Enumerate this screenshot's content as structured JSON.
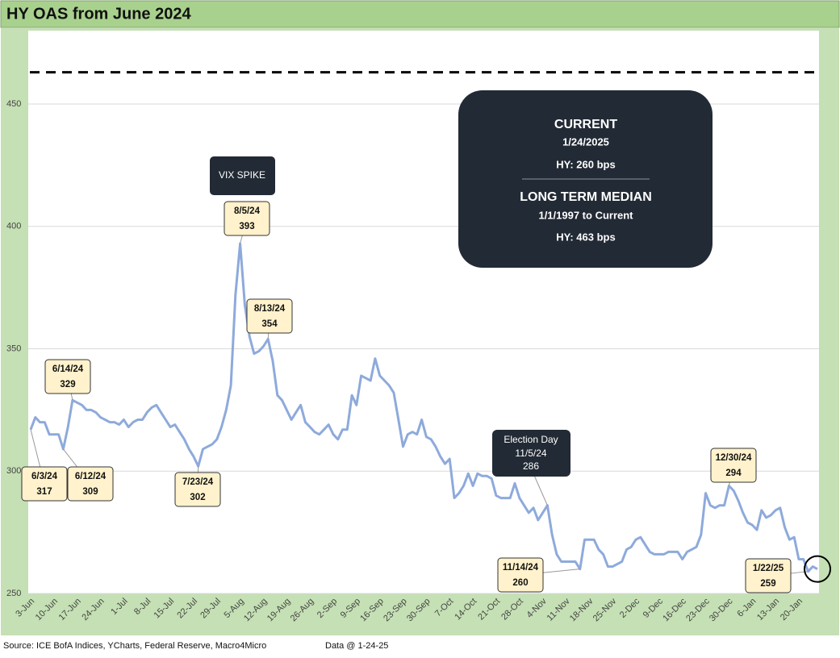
{
  "chart_data": {
    "type": "line",
    "title": "HY OAS from June 2024",
    "categories": [
      "3-Jun",
      null,
      null,
      null,
      null,
      "10-Jun",
      null,
      null,
      null,
      null,
      "17-Jun",
      null,
      null,
      null,
      null,
      "24-Jun",
      null,
      null,
      null,
      null,
      "1-Jul",
      null,
      null,
      null,
      null,
      "8-Jul",
      null,
      null,
      null,
      null,
      "15-Jul",
      null,
      null,
      null,
      null,
      "22-Jul",
      null,
      null,
      null,
      null,
      "29-Jul",
      null,
      null,
      null,
      null,
      "5-Aug",
      null,
      null,
      null,
      null,
      "12-Aug",
      null,
      null,
      null,
      null,
      "19-Aug",
      null,
      null,
      null,
      null,
      "26-Aug",
      null,
      null,
      null,
      null,
      "2-Sep",
      null,
      null,
      null,
      null,
      "9-Sep",
      null,
      null,
      null,
      null,
      "16-Sep",
      null,
      null,
      null,
      null,
      "23-Sep",
      null,
      null,
      null,
      null,
      "30-Sep",
      null,
      null,
      null,
      null,
      "7-Oct",
      null,
      null,
      null,
      null,
      "14-Oct",
      null,
      null,
      null,
      null,
      "21-Oct",
      null,
      null,
      null,
      null,
      "28-Oct",
      null,
      null,
      null,
      null,
      "4-Nov",
      null,
      null,
      null,
      null,
      "11-Nov",
      null,
      null,
      null,
      null,
      "18-Nov",
      null,
      null,
      null,
      null,
      "25-Nov",
      null,
      null,
      null,
      null,
      "2-Dec",
      null,
      null,
      null,
      null,
      "9-Dec",
      null,
      null,
      null,
      null,
      "16-Dec",
      null,
      null,
      null,
      null,
      "23-Dec",
      null,
      null,
      null,
      null,
      "30-Dec",
      null,
      null,
      null,
      null,
      "6-Jan",
      null,
      null,
      null,
      null,
      "13-Jan",
      null,
      null,
      null,
      null,
      "20-Jan",
      null,
      null,
      null,
      null
    ],
    "series": [
      {
        "name": "HY OAS",
        "color": "#8eaadb",
        "values": [
          317,
          322,
          320,
          320,
          315,
          315,
          315,
          309,
          318,
          329,
          328,
          327,
          325,
          325,
          324,
          322,
          321,
          320,
          320,
          319,
          321,
          318,
          320,
          321,
          321,
          324,
          326,
          327,
          324,
          321,
          318,
          319,
          316,
          313,
          309,
          306,
          302,
          309,
          310,
          311,
          313,
          318,
          325,
          335,
          372,
          393,
          368,
          355,
          348,
          349,
          351,
          354,
          345,
          331,
          329,
          325,
          321,
          324,
          327,
          320,
          318,
          316,
          315,
          317,
          319,
          315,
          313,
          317,
          317,
          331,
          327,
          339,
          338,
          337,
          346,
          339,
          337,
          335,
          332,
          321,
          310,
          315,
          316,
          315,
          321,
          314,
          313,
          310,
          306,
          303,
          305,
          289,
          291,
          294,
          299,
          294,
          299,
          298,
          298,
          297,
          290,
          289,
          289,
          289,
          295,
          289,
          286,
          283,
          285,
          280,
          283,
          286,
          274,
          266,
          263,
          263,
          263,
          263,
          260,
          272,
          272,
          272,
          268,
          266,
          261,
          261,
          262,
          263,
          268,
          269,
          272,
          273,
          270,
          267,
          266,
          266,
          266,
          267,
          267,
          267,
          264,
          267,
          268,
          269,
          274,
          291,
          286,
          285,
          286,
          286,
          294,
          292,
          288,
          283,
          279,
          278,
          276,
          284,
          281,
          282,
          284,
          285,
          277,
          272,
          273,
          264,
          264,
          259,
          261,
          260
        ]
      }
    ],
    "ylim": [
      250,
      480
    ],
    "yticks": [
      250,
      300,
      350,
      400,
      450
    ],
    "grid": true,
    "median_line": 463,
    "callouts": [
      "6/3/24",
      "6/12/24",
      "6/14/24",
      "7/23/24",
      "8/5/24",
      "8/13/24",
      "11/14/24",
      "12/30/24",
      "1/22/25"
    ],
    "election": {
      "title": "Election Day",
      "date": "11/5/24"
    },
    "vix_label": "VIX SPIKE",
    "info_box": {
      "current_title": "CURRENT",
      "current_date": "1/24/2025",
      "current_value": "HY: 260 bps",
      "median_title": "LONG TERM MEDIAN",
      "median_range": "1/1/1997 to Current",
      "median_value": "HY: 463 bps"
    },
    "source": "Source: ICE BofA Indices, YCharts, Federal Reserve, Macro4Micro",
    "data_note": "Data @ 1-24-25"
  }
}
